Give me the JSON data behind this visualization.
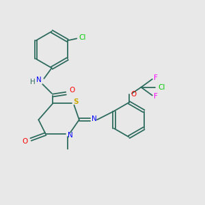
{
  "bg_color": "#e8e8e8",
  "bond_color": "#2d6b5e",
  "atom_colors": {
    "N": "#0000ff",
    "O": "#ff0000",
    "S": "#ccaa00",
    "Cl": "#00cc00",
    "F": "#ff00ff",
    "H": "#2d6b5e"
  },
  "font_size": 7.5,
  "line_width": 1.3
}
